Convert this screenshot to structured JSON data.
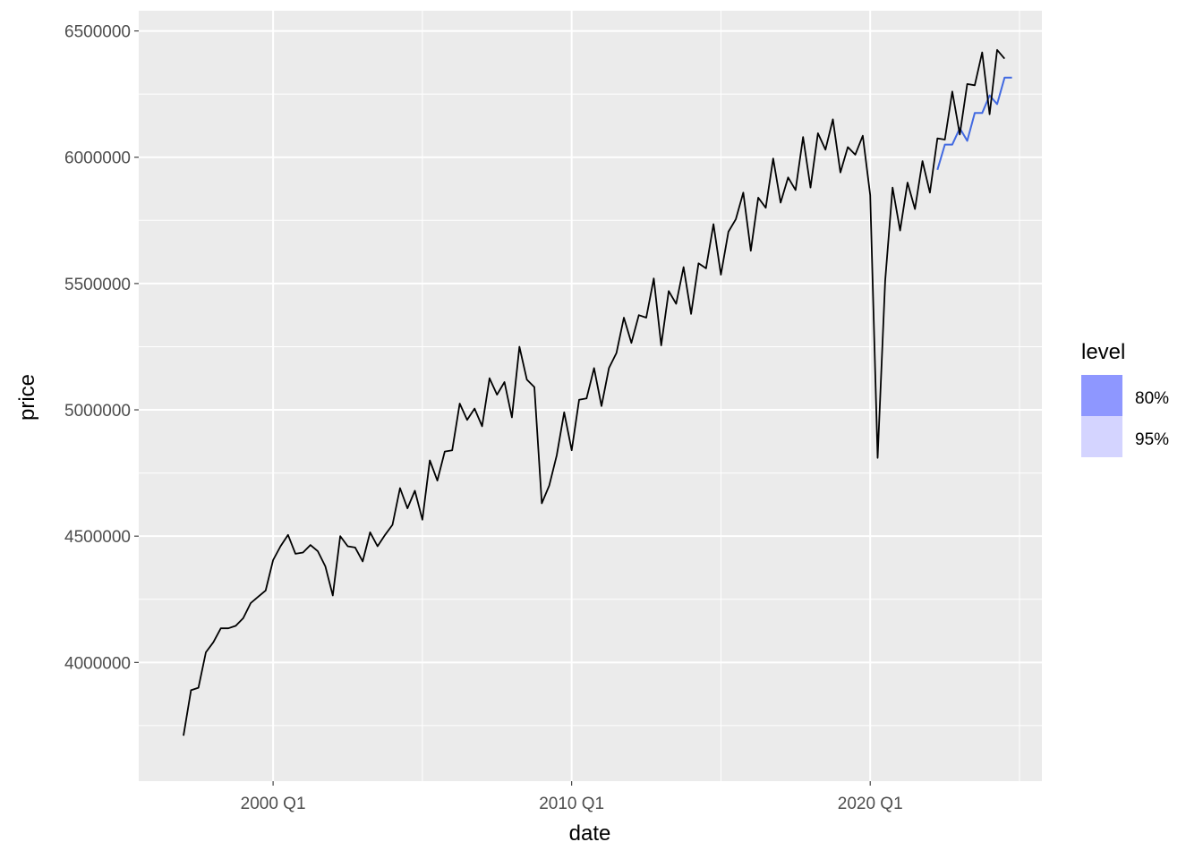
{
  "chart_data": {
    "type": "line",
    "xlabel": "date",
    "ylabel": "price",
    "x_ticks": [
      "2000 Q1",
      "2010 Q1",
      "2020 Q1"
    ],
    "y_ticks": [
      "4000000",
      "4500000",
      "5000000",
      "5500000",
      "6000000",
      "6500000"
    ],
    "y_tick_values": [
      4000000,
      4500000,
      5000000,
      5500000,
      6000000,
      6500000
    ],
    "x_tick_years": [
      2000,
      2010,
      2020
    ],
    "xlim": [
      "1995 Q3",
      "2025 Q4"
    ],
    "ylim": [
      3530000,
      6580000
    ],
    "grid": true,
    "legend_position": "right",
    "legend": {
      "title": "level",
      "entries": [
        {
          "label": "80%",
          "color": "#8e97ff"
        },
        {
          "label": "95%",
          "color": "#d4d4ff"
        }
      ]
    },
    "colors": {
      "panel": "#ebebeb",
      "grid": "#ffffff",
      "history_line": "#000000",
      "forecast_line": "#4169e1"
    },
    "series": [
      {
        "role": "history",
        "start": "1997 Q1",
        "values": [
          3710000,
          3890000,
          3900000,
          4040000,
          4080000,
          4135000,
          4135000,
          4145000,
          4175000,
          4235000,
          4260000,
          4285000,
          4405000,
          4460000,
          4505000,
          4430000,
          4435000,
          4465000,
          4440000,
          4380000,
          4265000,
          4500000,
          4460000,
          4455000,
          4400000,
          4515000,
          4460000,
          4505000,
          4545000,
          4690000,
          4610000,
          4680000,
          4565000,
          4800000,
          4720000,
          4835000,
          4840000,
          5025000,
          4960000,
          5005000,
          4935000,
          5125000,
          5060000,
          5110000,
          4970000,
          5250000,
          5120000,
          5090000,
          4630000,
          4700000,
          4820000,
          4990000,
          4840000,
          5040000,
          5045000,
          5165000,
          5015000,
          5165000,
          5225000,
          5365000,
          5265000,
          5375000,
          5365000,
          5520000,
          5255000,
          5470000,
          5420000,
          5565000,
          5380000,
          5580000,
          5560000,
          5735000,
          5535000,
          5705000,
          5755000,
          5860000,
          5630000,
          5840000,
          5800000,
          5995000,
          5820000,
          5920000,
          5870000,
          6080000,
          5880000,
          6095000,
          6030000,
          6150000,
          5940000,
          6040000,
          6010000,
          6085000,
          5850000,
          4810000,
          5510000,
          5880000,
          5710000,
          5900000,
          5795000,
          5985000,
          5860000,
          6075000,
          6070000,
          6260000,
          6090000,
          6290000,
          6285000,
          6415000,
          6170000,
          6425000,
          6390000
        ]
      },
      {
        "role": "forecast",
        "start": "2022 Q2",
        "values": [
          5950000,
          6050000,
          6050000,
          6115000,
          6065000,
          6175000,
          6175000,
          6245000,
          6210000,
          6315000,
          6315000
        ]
      }
    ]
  }
}
